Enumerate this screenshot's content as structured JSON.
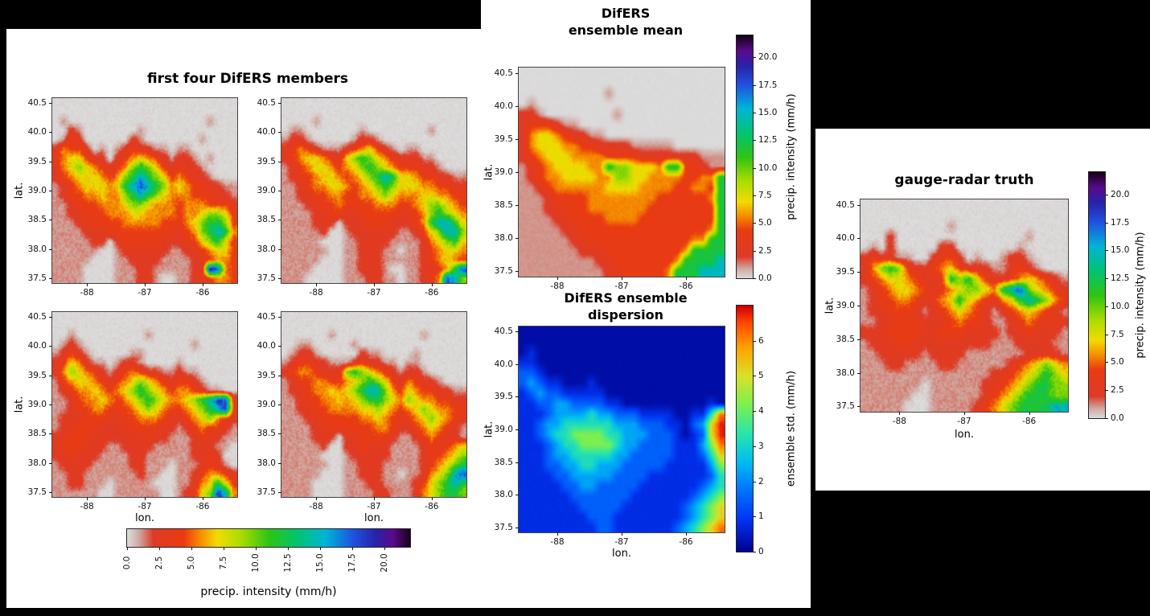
{
  "panels": {
    "members": {
      "title": "first four DifERS members"
    },
    "mean": {
      "title_line1": "DifERS",
      "title_line2": "ensemble mean"
    },
    "dispersion": {
      "title_line1": "DifERS ensemble",
      "title_line2": "dispersion"
    },
    "truth": {
      "title": "gauge-radar truth"
    }
  },
  "axes": {
    "xlabel": "lon.",
    "ylabel": "lat.",
    "x_ticks": [
      "-88",
      "-87",
      "-86"
    ],
    "x_tick_values": [
      -88,
      -87,
      -86
    ],
    "y_ticks": [
      "40.5",
      "40.0",
      "39.5",
      "39.0",
      "38.5",
      "38.0",
      "37.5"
    ],
    "y_tick_values": [
      40.5,
      40.0,
      39.5,
      39.0,
      38.5,
      38.0,
      37.5
    ],
    "xlim": [
      -88.6,
      -85.4
    ],
    "ylim": [
      37.42,
      40.58
    ]
  },
  "colorbars": {
    "precip": {
      "label": "precip. intensity (mm/h)",
      "ticks": [
        "0.0",
        "2.5",
        "5.0",
        "7.5",
        "10.0",
        "12.5",
        "15.0",
        "17.5",
        "20.0"
      ],
      "tick_values": [
        0,
        2.5,
        5,
        7.5,
        10,
        12.5,
        15,
        17.5,
        20
      ],
      "vmin": 0,
      "vmax": 22,
      "stops": [
        [
          0,
          "#dcdcdc"
        ],
        [
          0.9,
          "#d0a9a2"
        ],
        [
          2.0,
          "#de3b27"
        ],
        [
          4.4,
          "#ea3b12"
        ],
        [
          5.6,
          "#f58900"
        ],
        [
          7.0,
          "#f2dc00"
        ],
        [
          8.8,
          "#abdd00"
        ],
        [
          11.0,
          "#2fc414"
        ],
        [
          13.2,
          "#00c472"
        ],
        [
          15.4,
          "#00b4d8"
        ],
        [
          17.6,
          "#2050e0"
        ],
        [
          19.3,
          "#2823a8"
        ],
        [
          20.6,
          "#5c0a8c"
        ],
        [
          22,
          "#16021a"
        ]
      ]
    },
    "std": {
      "label": "ensemble std. (mm/h)",
      "ticks": [
        "0",
        "1",
        "2",
        "3",
        "4",
        "5",
        "6"
      ],
      "tick_values": [
        0,
        1,
        2,
        3,
        4,
        5,
        6
      ],
      "vmin": 0,
      "vmax": 7,
      "stops": [
        [
          0,
          "#00008c"
        ],
        [
          0.9,
          "#0033f0"
        ],
        [
          1.8,
          "#0077ff"
        ],
        [
          2.6,
          "#00c0f0"
        ],
        [
          3.4,
          "#2ce6a8"
        ],
        [
          4.2,
          "#7df04e"
        ],
        [
          5.0,
          "#d8e22a"
        ],
        [
          5.8,
          "#ffa400"
        ],
        [
          6.5,
          "#ff4a00"
        ],
        [
          7,
          "#cf0000"
        ]
      ]
    }
  },
  "precip_value_map": {
    ".": 0,
    "1": 1.1,
    "2": 2.6,
    "3": 4.0,
    "4": 5.6,
    "5": 7.2,
    "6": 9.5,
    "7": 12,
    "8": 15,
    "9": 18,
    "X": 20.5
  },
  "std_value_map": {
    ".": 0.25,
    "1": 0.8,
    "2": 1.5,
    "3": 2.3,
    "4": 3.2,
    "5": 4.2,
    "6": 5.2,
    "7": 6.2,
    "8": 6.8,
    "9": 7,
    "X": 7
  },
  "chart_data": [
    {
      "id": "member1",
      "type": "heatmap",
      "panel_title": "first four DifERS members",
      "xlabel": "",
      "ylabel": "lat.",
      "colorbar": "precip",
      "value_map_key": "precip_value_map",
      "texture": "speckled",
      "seed": 11,
      "grid": [
        [
          "........",
          "........",
          "........"
        ],
        [
          "........",
          "........",
          "........"
        ],
        [
          ".1......",
          "........",
          "....1..."
        ],
        [
          "..21....",
          "...1....",
          "........"
        ],
        [
          ".132....",
          "..21....",
          "...1...."
        ],
        [
          "24332.1.",
          "1232211.",
          "11......"
        ],
        [
          "3455322.",
          "23454321",
          "221.1..."
        ],
        [
          "24565432",
          "34676532",
          "3221...."
        ],
        [
          "23455543",
          "46787653",
          "43221..."
        ],
        [
          "12345554",
          "57898764",
          "54332211"
        ],
        [
          "12334454",
          "46787654",
          "44333221"
        ],
        [
          "11233344",
          "45665444",
          "34443332"
        ],
        [
          "11223334",
          "44554444",
          "34456653"
        ],
        [
          "11122333",
          "34444433",
          "34567763"
        ],
        [
          "11112223",
          "33333333",
          "23467874"
        ],
        [
          "1111122.",
          "23333322",
          "23356753"
        ],
        [
          "111111..",
          "12222221",
          "12234553"
        ],
        [
          "11111...",
          "11222211",
          "11223443"
        ],
        [
          "1111....",
          "11122111",
          "1122X943"
        ],
        [
          "1111....",
          "111221..",
          "11223443"
        ]
      ]
    },
    {
      "id": "member2",
      "type": "heatmap",
      "panel_title": "first four DifERS members",
      "xlabel": "",
      "ylabel": "",
      "colorbar": "precip",
      "value_map_key": "precip_value_map",
      "texture": "speckled",
      "seed": 22,
      "grid": [
        [
          "........",
          "........",
          "........"
        ],
        [
          "........",
          "........",
          "........"
        ],
        [
          "....1...",
          "........",
          "........"
        ],
        [
          ".11.....",
          "..1.....",
          "...1...."
        ],
        [
          "1221....",
          ".1221...",
          "........"
        ],
        [
          "23432111",
          "2345321.",
          "11......"
        ],
        [
          "23455432",
          "56765432",
          "2211...."
        ],
        [
          "12345543",
          "45676543",
          "33221..."
        ],
        [
          "12334554",
          "34567875",
          "54332211"
        ],
        [
          "11234455",
          "43456765",
          "55443322"
        ],
        [
          "11223344",
          "33445654",
          "44554433"
        ],
        [
          "11122334",
          "33334443",
          "34566543"
        ],
        [
          "11112233",
          "22333332",
          "23467654"
        ],
        [
          "1111222.",
          "22233322",
          "23478875"
        ],
        [
          "111112..",
          "12222221",
          "12356886"
        ],
        [
          "11111...",
          "11222211",
          "11245675"
        ],
        [
          "111111..",
          "1122211.",
          "11234554"
        ],
        [
          "11111...",
          "11222111",
          "11234543"
        ],
        [
          "1111....",
          "112221..",
          "11223479"
        ],
        [
          "111.....",
          "1112211.",
          "11234986"
        ]
      ]
    },
    {
      "id": "member3",
      "type": "heatmap",
      "panel_title": "first four DifERS members",
      "xlabel": "lon.",
      "ylabel": "lat.",
      "colorbar": "precip",
      "value_map_key": "precip_value_map",
      "texture": "speckled",
      "seed": 33,
      "grid": [
        [
          "........",
          "........",
          "........"
        ],
        [
          "........",
          "........",
          "........"
        ],
        [
          "..1.....",
          "....1...",
          "........"
        ],
        [
          ".121....",
          "........",
          "..1....."
        ],
        [
          "12321...",
          "..11....",
          "........"
        ],
        [
          "2354211.",
          "1221....",
          "1......."
        ],
        [
          "24654321",
          "23432211",
          "211....."
        ],
        [
          "13455432",
          "34565432",
          "3321...."
        ],
        [
          "12344543",
          "45676543",
          "443211.."
        ],
        [
          "11234454",
          "34567654",
          "45678993"
        ],
        [
          "11233443",
          "33456543",
          "34567893"
        ],
        [
          "12223332",
          "23344432",
          "23456432"
        ],
        [
          "12233322",
          "22333322",
          "12343321"
        ],
        [
          "22333222",
          "22223221",
          "11232211"
        ],
        [
          "23332221",
          "12222111",
          "1122211."
        ],
        [
          "22322211",
          "11221111",
          "112232.."
        ],
        [
          "12222111",
          "1122111.",
          "1112321."
        ],
        [
          "11221111",
          "111211..",
          "11234432"
        ],
        [
          "1122111.",
          "11111...",
          "11245753"
        ],
        [
          "111111..",
          "111111..",
          "12356984"
        ]
      ]
    },
    {
      "id": "member4",
      "type": "heatmap",
      "panel_title": "first four DifERS members",
      "xlabel": "lon.",
      "ylabel": "",
      "colorbar": "precip",
      "value_map_key": "precip_value_map",
      "texture": "speckled",
      "seed": 44,
      "grid": [
        [
          "........",
          "........",
          "........"
        ],
        [
          "........",
          "........",
          "........"
        ],
        [
          "......1.",
          "........",
          "..1....."
        ],
        [
          "..11....",
          ".1......",
          "........"
        ],
        [
          ".1221...",
          "..211...",
          ".1......"
        ],
        [
          "12332211",
          "1232211.",
          "11......"
        ],
        [
          "23443222",
          "67654321",
          "221....."
        ],
        [
          "12334433",
          "45676532",
          "43221..."
        ],
        [
          "12234454",
          "56788643",
          "54332211"
        ],
        [
          "11233445",
          "45677654",
          "65443322"
        ],
        [
          "11223344",
          "44556543",
          "45654433"
        ],
        [
          "11122333",
          "33445432",
          "34565432"
        ],
        [
          "11112233",
          "33334432",
          "23454321"
        ],
        [
          "1111222.",
          "22333321",
          "12343221"
        ],
        [
          "111112..",
          "22322211",
          "11232345"
        ],
        [
          "11111...",
          "12222211",
          "11233456"
        ],
        [
          "111111..",
          "11222111",
          "11234567"
        ],
        [
          "11111...",
          "1122211.",
          "11245689"
        ],
        [
          "1111....",
          "11122111",
          "12356787"
        ],
        [
          "1111....",
          "11112211",
          "12456776"
        ]
      ]
    },
    {
      "id": "mean",
      "type": "heatmap",
      "panel_title": "DifERS ensemble mean",
      "xlabel": "",
      "ylabel": "lat.",
      "colorbar": "precip",
      "value_map_key": "precip_value_map",
      "texture": "smooth",
      "seed": 55,
      "grid": [
        [
          "........",
          "........",
          "........"
        ],
        [
          "........",
          "........",
          "........"
        ],
        [
          "........",
          "..1.....",
          "........"
        ],
        [
          ".1......",
          "........",
          "........"
        ],
        [
          "221.....",
          "...1....",
          "........"
        ],
        [
          "2333211.",
          "........",
          "........"
        ],
        [
          "24554322",
          "11......",
          "........"
        ],
        [
          "24555443",
          "32222111",
          "11......"
        ],
        [
          "23455544",
          "44333322",
          "22222111"
        ],
        [
          "12345555",
          "44766555",
          "47733211"
        ],
        [
          "12344555",
          "54466554",
          "44433447"
        ],
        [
          "11234444",
          "44555544",
          "44334437"
        ],
        [
          "11123333",
          "44444444",
          "33333347"
        ],
        [
          "11122333",
          "44444443",
          "33333337"
        ],
        [
          "11112233",
          "33444433",
          "33333337"
        ],
        [
          "11111223",
          "33333333",
          "33333347"
        ],
        [
          "11111122",
          "33333333",
          "33334477"
        ],
        [
          "11111112",
          "22333333",
          "33347777"
        ],
        [
          "11111111",
          "12233333",
          "33477778"
        ],
        [
          "11111111",
          "11223333",
          "34777888"
        ]
      ]
    },
    {
      "id": "dispersion",
      "type": "heatmap",
      "panel_title": "DifERS ensemble dispersion",
      "xlabel": "lon.",
      "ylabel": "lat.",
      "colorbar": "std",
      "value_map_key": "std_value_map",
      "texture": "smooth",
      "seed": 66,
      "grid": [
        [
          "........",
          "........",
          "........"
        ],
        [
          "........",
          "........",
          "........"
        ],
        [
          ".1......",
          "........",
          "........"
        ],
        [
          "11......",
          "........",
          "........"
        ],
        [
          "221.....",
          "........",
          "........"
        ],
        [
          "23211...",
          "1.......",
          "........"
        ],
        [
          "12322111",
          "11......",
          "........"
        ],
        [
          "11223322",
          "2211....",
          "......1."
        ],
        [
          "11123333",
          "43322211",
          "11..1147"
        ],
        [
          "11233444",
          "44433322",
          "211.2368"
        ],
        [
          "11234455",
          "55443332",
          "221.1268"
        ],
        [
          "11123445",
          "55543322",
          "22111357"
        ],
        [
          "11123344",
          "44433222",
          "22111246"
        ],
        [
          "11122334",
          "43332222",
          "21111135"
        ],
        [
          "11112233",
          "33322221",
          "11111124"
        ],
        [
          "11111223",
          "32222211",
          "11111234"
        ],
        [
          "11111122",
          "22222111",
          "11112345"
        ],
        [
          "11111112",
          "22221111",
          "11123456"
        ],
        [
          "11111111",
          "22211111",
          "11123456"
        ],
        [
          "11111111",
          "12211111",
          "11234567"
        ]
      ]
    },
    {
      "id": "truth",
      "type": "heatmap",
      "panel_title": "gauge-radar truth",
      "xlabel": "lon.",
      "ylabel": "lat.",
      "colorbar": "precip",
      "value_map_key": "precip_value_map",
      "texture": "speckled",
      "seed": 77,
      "grid": [
        [
          "........",
          "........",
          "........"
        ],
        [
          "........",
          "........",
          "........"
        ],
        [
          "........",
          "..1.....",
          "........"
        ],
        [
          "...2....",
          "........",
          "...1...."
        ],
        [
          ".1.2....",
          ".22.....",
          "..1....."
        ],
        [
          "232211..",
          "2332.1..",
          "1221...."
        ],
        [
          "24676322",
          "34532221",
          "12321..."
        ],
        [
          "23455432",
          "23767532",
          "23454321"
        ],
        [
          "12345543",
          "23456654",
          "78965432"
        ],
        [
          "12334432",
          "34575432",
          "45787643"
        ],
        [
          "12233321",
          "23454321",
          "23454321"
        ],
        [
          "11223332",
          "22343321",
          "12343232"
        ],
        [
          "22233332",
          "23332222",
          "12232221"
        ],
        [
          "12223322",
          "22222221",
          "11222211"
        ],
        [
          "11222221",
          "22221111",
          "11122221"
        ],
        [
          "11122111",
          "12211111",
          "12345654"
        ],
        [
          "11111111",
          "11111112",
          "23456765"
        ],
        [
          "1111111.",
          "11111122",
          "34567766"
        ],
        [
          "111111..",
          "11111123",
          "45677766"
        ],
        [
          "11111...",
          "11111234",
          "56777788"
        ]
      ]
    }
  ]
}
